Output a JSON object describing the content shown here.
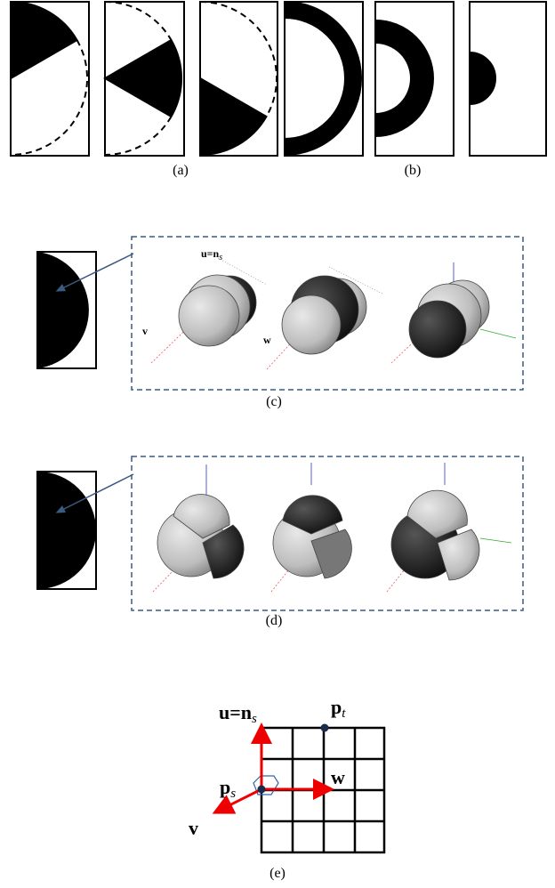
{
  "captions": {
    "a": "(a)",
    "b": "(b)",
    "c": "(c)",
    "d": "(d)",
    "e": "(e)"
  },
  "panel_c": {
    "u_axis": {
      "text": "u=n",
      "sub": "s"
    },
    "v_axis": "v",
    "w_axis": "w"
  },
  "panel_e": {
    "u_axis": {
      "text": "u=n",
      "sub": "s"
    },
    "p_t": {
      "text": "p",
      "sub": "t"
    },
    "p_s": {
      "text": "p",
      "sub": "s"
    },
    "w_axis": "w",
    "v_axis": "v"
  }
}
